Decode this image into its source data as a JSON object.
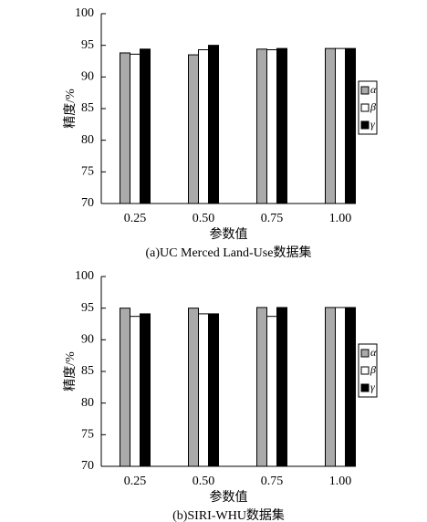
{
  "chart_data": [
    {
      "type": "bar",
      "title": "(a)UC Merced Land-Use数据集",
      "x_label": "参数值",
      "y_label": "精度/%",
      "categories": [
        "0.25",
        "0.50",
        "0.75",
        "1.00"
      ],
      "series": [
        {
          "name": "α",
          "color": "#aaaaaa",
          "values": [
            93.8,
            93.5,
            94.4,
            94.5
          ]
        },
        {
          "name": "β",
          "color": "#ffffff",
          "values": [
            93.6,
            94.3,
            94.3,
            94.5
          ]
        },
        {
          "name": "γ",
          "color": "#000000",
          "values": [
            94.4,
            95.0,
            94.5,
            94.5
          ]
        }
      ],
      "ylim": [
        70,
        100
      ],
      "yticks": [
        70,
        75,
        80,
        85,
        90,
        95,
        100
      ],
      "grid": false,
      "legend": "right"
    },
    {
      "type": "bar",
      "title": "(b)SIRI-WHU数据集",
      "x_label": "参数值",
      "y_label": "精度/%",
      "categories": [
        "0.25",
        "0.50",
        "0.75",
        "1.00"
      ],
      "series": [
        {
          "name": "α",
          "color": "#aaaaaa",
          "values": [
            95.0,
            95.0,
            95.1,
            95.1
          ]
        },
        {
          "name": "β",
          "color": "#ffffff",
          "values": [
            93.7,
            94.1,
            93.7,
            95.1
          ]
        },
        {
          "name": "γ",
          "color": "#000000",
          "values": [
            94.1,
            94.1,
            95.1,
            95.1
          ]
        }
      ],
      "ylim": [
        70,
        100
      ],
      "yticks": [
        70,
        75,
        80,
        85,
        90,
        95,
        100
      ],
      "grid": false,
      "legend": "right"
    }
  ]
}
